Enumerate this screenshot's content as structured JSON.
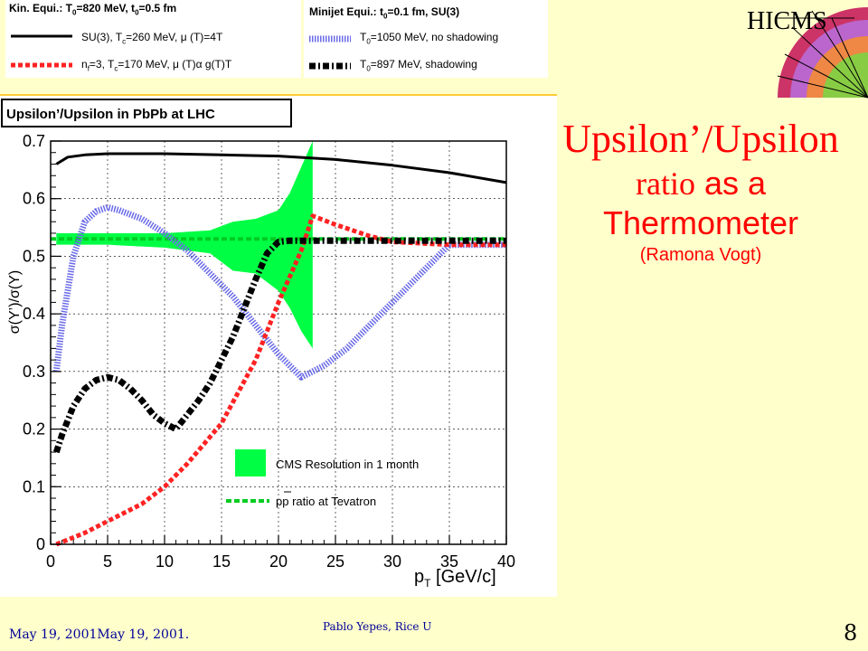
{
  "logo": {
    "text": "HICMS"
  },
  "slide_title": {
    "line1": "Upsilon’/Upsilon",
    "line2a": "ratio",
    "line2b": " as a",
    "line3": "Thermometer",
    "line4": "(Ramona Vogt)"
  },
  "legend_left": {
    "heading": "Kin. Equi.: T",
    "heading_rest": "=820 MeV, t",
    "heading_end": "=0.5 fm",
    "sub0": "0",
    "sub0b": "0",
    "item1": "SU(3), T",
    "item1_sub": "c",
    "item1_rest": "=260 MeV,  μ (T)=4T",
    "item2": "n",
    "item2_sub": "f",
    "item2_rest": "=3, T",
    "item2_sub2": "c",
    "item2_end": "=170 MeV,  μ (T)α  g(T)T"
  },
  "legend_right": {
    "heading": "Minijet Equi.: t",
    "heading_sub": "0",
    "heading_rest": "=0.1 fm, SU(3)",
    "item1": "T",
    "item1_sub": "0",
    "item1_rest": "=1050 MeV, no shadowing",
    "item2": "T",
    "item2_sub": "0",
    "item2_rest": "=897 MeV, shadowing"
  },
  "footer": {
    "date": "May 19, 2001May 19, 2001.",
    "author": "Pablo Yepes, Rice U",
    "page": "8"
  },
  "colors": {
    "background": "#ffffcc",
    "title": "#ff0000",
    "su3": "#000000",
    "nf3": "#ff2222",
    "no_shadowing": "#6a6ae8",
    "shadowing": "#000000",
    "cms_band": "#00ff44",
    "tevatron": "#00cc22"
  },
  "chart_data": {
    "type": "line",
    "title": "Upsilon’/Upsilon in PbPb at LHC",
    "xlabel": "p",
    "xlabel_sub": "T",
    "xlabel_unit": " [GeV/c]",
    "ylabel": "σ(Υ’)/σ(Υ)",
    "xlim": [
      0,
      40
    ],
    "ylim": [
      0,
      0.7
    ],
    "x_ticks": [
      "0",
      "5",
      "10",
      "15",
      "20",
      "25",
      "30",
      "35",
      "40"
    ],
    "y_ticks": [
      "0",
      "0.1",
      "0.2",
      "0.3",
      "0.4",
      "0.5",
      "0.6",
      "0.7"
    ],
    "grid": true,
    "inset_legend": {
      "band_label": "CMS Resolution in 1 month",
      "tevatron_label": " ratio at Tevatron",
      "tevatron_pp": "pp",
      "tevatron_pbar": "p"
    },
    "series": [
      {
        "key": "su3",
        "style": "solid",
        "x": [
          0.5,
          1.5,
          3,
          5,
          8,
          10,
          15,
          20,
          25,
          30,
          35,
          40
        ],
        "y": [
          0.66,
          0.672,
          0.676,
          0.678,
          0.678,
          0.678,
          0.676,
          0.674,
          0.668,
          0.658,
          0.645,
          0.628
        ]
      },
      {
        "key": "nf3",
        "style": "dotted",
        "x": [
          0.5,
          3,
          5,
          8,
          10,
          12,
          15,
          18,
          20,
          22,
          23,
          25,
          28,
          30,
          35,
          40
        ],
        "y": [
          0.0,
          0.02,
          0.04,
          0.07,
          0.1,
          0.14,
          0.21,
          0.32,
          0.42,
          0.51,
          0.57,
          0.555,
          0.535,
          0.525,
          0.52,
          0.52
        ]
      },
      {
        "key": "no_shadowing",
        "style": "hatched",
        "x": [
          0.5,
          1,
          2,
          3,
          4,
          5,
          6,
          8,
          10,
          12,
          14,
          16,
          18,
          20,
          22,
          23,
          24,
          26,
          28,
          30,
          32,
          34,
          35,
          40
        ],
        "y": [
          0.3,
          0.38,
          0.5,
          0.56,
          0.578,
          0.585,
          0.58,
          0.565,
          0.54,
          0.51,
          0.47,
          0.43,
          0.38,
          0.33,
          0.29,
          0.3,
          0.31,
          0.34,
          0.38,
          0.42,
          0.46,
          0.5,
          0.52,
          0.52
        ]
      },
      {
        "key": "shadowing",
        "style": "dashdot",
        "x": [
          0.5,
          1,
          2,
          3,
          4,
          5,
          6,
          7,
          8,
          9,
          10,
          11,
          12,
          13,
          14,
          15,
          16,
          17,
          18,
          19,
          20,
          21,
          22,
          25,
          30,
          35,
          40
        ],
        "y": [
          0.16,
          0.19,
          0.24,
          0.27,
          0.285,
          0.29,
          0.285,
          0.27,
          0.25,
          0.225,
          0.21,
          0.2,
          0.225,
          0.25,
          0.28,
          0.32,
          0.36,
          0.41,
          0.46,
          0.505,
          0.525,
          0.527,
          0.527,
          0.527,
          0.527,
          0.527,
          0.527
        ]
      },
      {
        "key": "tevatron",
        "style": "dashed",
        "x": [
          0,
          40
        ],
        "y": [
          0.53,
          0.53
        ]
      }
    ],
    "band": {
      "name": "CMS Resolution in 1 month",
      "x": [
        0.5,
        5,
        10,
        14,
        16,
        18,
        20,
        21,
        22,
        23
      ],
      "upper": [
        0.54,
        0.54,
        0.54,
        0.545,
        0.56,
        0.565,
        0.58,
        0.61,
        0.655,
        0.7
      ],
      "lower": [
        0.52,
        0.52,
        0.515,
        0.505,
        0.475,
        0.47,
        0.44,
        0.41,
        0.37,
        0.34
      ]
    }
  }
}
